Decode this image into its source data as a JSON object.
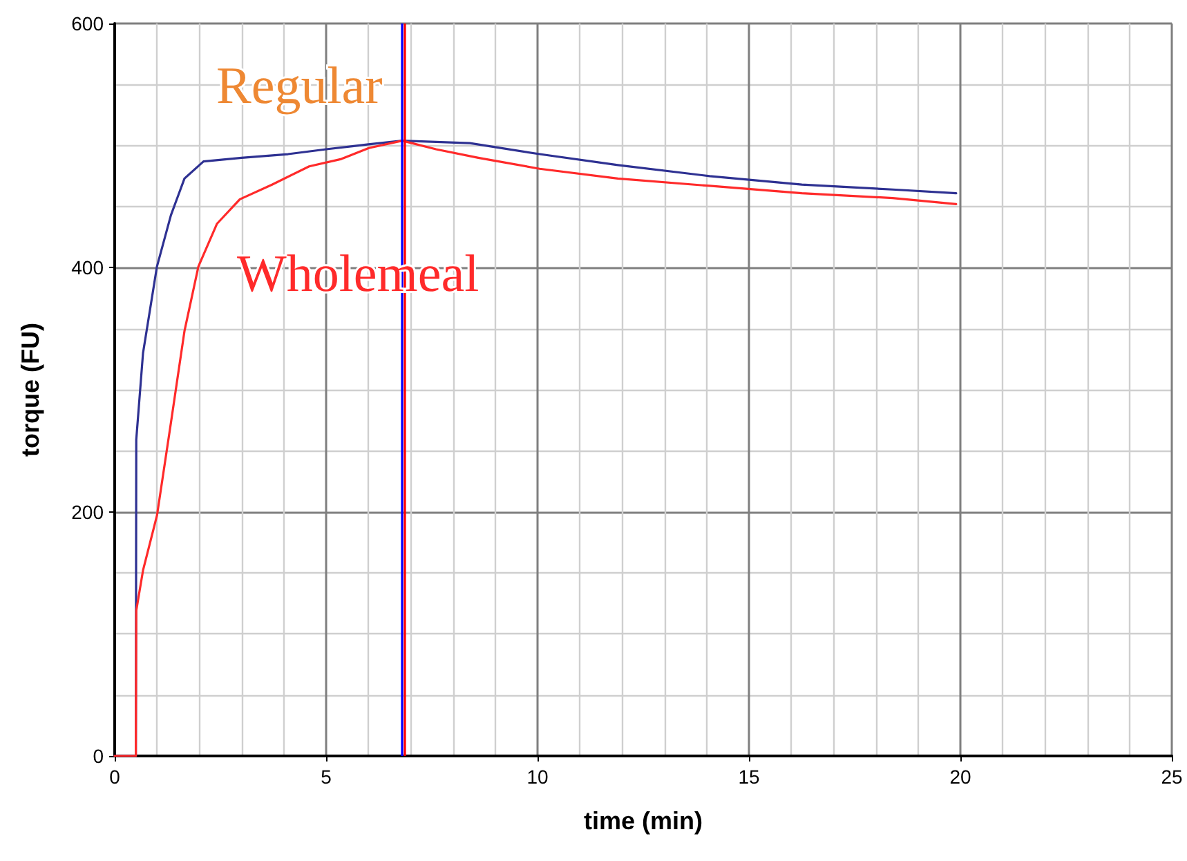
{
  "chart_data": {
    "type": "line",
    "xlabel": "time (min)",
    "ylabel": "torque (FU)",
    "xlim": [
      0,
      25
    ],
    "xticks": [
      0,
      5,
      10,
      15,
      20,
      25
    ],
    "ylim": [
      0,
      600
    ],
    "yticks": [
      0,
      200,
      400,
      600
    ],
    "grid": true,
    "legend": false,
    "marker": "none",
    "line_style": "solid",
    "series": [
      {
        "name": "Regular",
        "color": "#2e3192",
        "x": [
          0,
          0.5,
          0.51,
          0.67,
          1.0,
          1.33,
          1.65,
          2.1,
          3.0,
          4.1,
          5.0,
          6.0,
          6.8,
          8.4,
          10.05,
          11.9,
          14.07,
          16.25,
          18.4,
          19.9
        ],
        "values": [
          0,
          0,
          259,
          330,
          401,
          443,
          473,
          487,
          490,
          493,
          497,
          501,
          504,
          502,
          493,
          484,
          475,
          468,
          464,
          461
        ]
      },
      {
        "name": "Wholemeal",
        "color": "#ff2a2a",
        "x": [
          0,
          0.5,
          0.51,
          0.67,
          1.0,
          1.33,
          1.65,
          1.98,
          2.42,
          2.96,
          3.72,
          4.6,
          5.36,
          6.01,
          6.8,
          7.6,
          8.6,
          10.05,
          11.9,
          14.07,
          16.25,
          18.4,
          19.9
        ],
        "values": [
          0,
          0,
          119,
          152,
          197,
          273,
          348,
          401,
          436,
          456,
          468,
          483,
          489,
          498,
          504,
          497,
          490,
          481,
          473,
          467,
          461,
          457,
          452
        ]
      }
    ],
    "ref_lines": [
      {
        "axis": "x",
        "value": 6.8,
        "color": "#0000ff"
      },
      {
        "axis": "x",
        "value": 6.85,
        "color": "#ff0000"
      }
    ]
  }
}
